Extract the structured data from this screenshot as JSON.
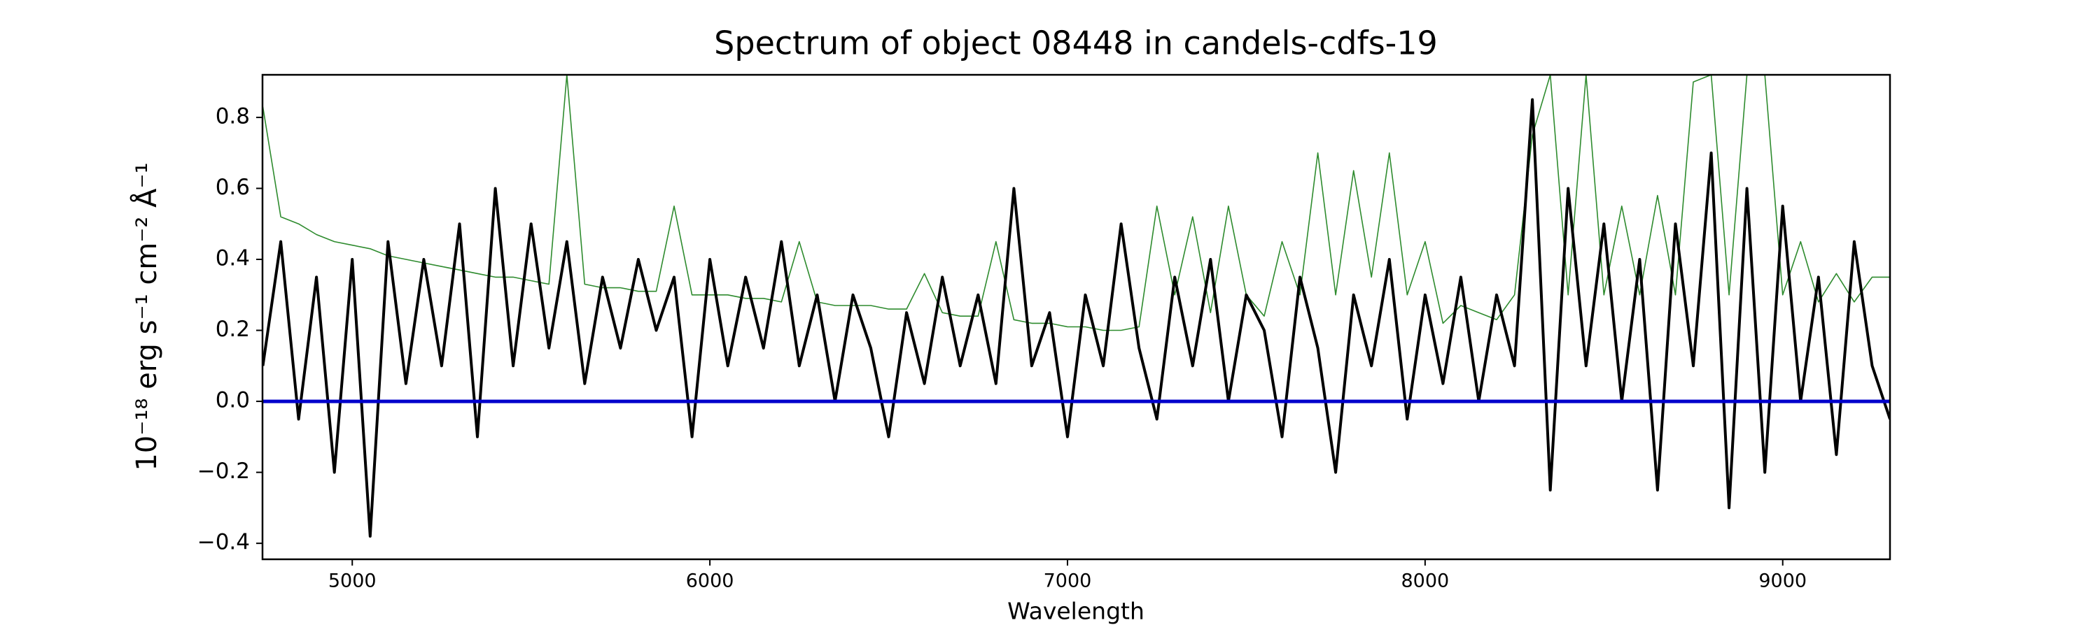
{
  "chart_data": {
    "type": "line",
    "title": "Spectrum of object 08448 in candels-cdfs-19",
    "xlabel": "Wavelength",
    "ylabel": "10⁻¹⁸ erg s⁻¹ cm⁻² Å⁻¹",
    "x": [
      4750,
      4800,
      4850,
      4900,
      4950,
      5000,
      5050,
      5100,
      5150,
      5200,
      5250,
      5300,
      5350,
      5400,
      5450,
      5500,
      5550,
      5600,
      5650,
      5700,
      5750,
      5800,
      5850,
      5900,
      5950,
      6000,
      6050,
      6100,
      6150,
      6200,
      6250,
      6300,
      6350,
      6400,
      6450,
      6500,
      6550,
      6600,
      6650,
      6700,
      6750,
      6800,
      6850,
      6900,
      6950,
      7000,
      7050,
      7100,
      7150,
      7200,
      7250,
      7300,
      7350,
      7400,
      7450,
      7500,
      7550,
      7600,
      7650,
      7700,
      7750,
      7800,
      7850,
      7900,
      7950,
      8000,
      8050,
      8100,
      8150,
      8200,
      8250,
      8300,
      8350,
      8400,
      8450,
      8500,
      8550,
      8600,
      8650,
      8700,
      8750,
      8800,
      8850,
      8900,
      8950,
      9000,
      9050,
      9100,
      9150,
      9200,
      9250,
      9300
    ],
    "series": [
      {
        "color": "#2e8b2e",
        "width": 1.6,
        "values": [
          0.83,
          0.52,
          0.5,
          0.47,
          0.45,
          0.44,
          0.43,
          0.41,
          0.4,
          0.39,
          0.38,
          0.37,
          0.36,
          0.35,
          0.35,
          0.34,
          0.33,
          0.92,
          0.33,
          0.32,
          0.32,
          0.31,
          0.31,
          0.55,
          0.3,
          0.3,
          0.3,
          0.29,
          0.29,
          0.28,
          0.45,
          0.28,
          0.27,
          0.27,
          0.27,
          0.26,
          0.26,
          0.36,
          0.25,
          0.24,
          0.24,
          0.45,
          0.23,
          0.22,
          0.22,
          0.21,
          0.21,
          0.2,
          0.2,
          0.21,
          0.55,
          0.3,
          0.52,
          0.25,
          0.55,
          0.3,
          0.24,
          0.45,
          0.3,
          0.7,
          0.3,
          0.65,
          0.35,
          0.7,
          0.3,
          0.45,
          0.22,
          0.27,
          0.25,
          0.23,
          0.3,
          0.75,
          0.92,
          0.3,
          0.92,
          0.3,
          0.55,
          0.3,
          0.58,
          0.3,
          0.9,
          0.92,
          0.3,
          0.92,
          0.92,
          0.3,
          0.45,
          0.28,
          0.36,
          0.28,
          0.35,
          0.35
        ]
      },
      {
        "color": "#000000",
        "width": 4,
        "values": [
          0.1,
          0.45,
          -0.05,
          0.35,
          -0.2,
          0.4,
          -0.38,
          0.45,
          0.05,
          0.4,
          0.1,
          0.5,
          -0.1,
          0.6,
          0.1,
          0.5,
          0.15,
          0.45,
          0.05,
          0.35,
          0.15,
          0.4,
          0.2,
          0.35,
          -0.1,
          0.4,
          0.1,
          0.35,
          0.15,
          0.45,
          0.1,
          0.3,
          0.0,
          0.3,
          0.15,
          -0.1,
          0.25,
          0.05,
          0.35,
          0.1,
          0.3,
          0.05,
          0.6,
          0.1,
          0.25,
          -0.1,
          0.3,
          0.1,
          0.5,
          0.15,
          -0.05,
          0.35,
          0.1,
          0.4,
          0.0,
          0.3,
          0.2,
          -0.1,
          0.35,
          0.15,
          -0.2,
          0.3,
          0.1,
          0.4,
          -0.05,
          0.3,
          0.05,
          0.35,
          0.0,
          0.3,
          0.1,
          0.85,
          -0.25,
          0.6,
          0.1,
          0.5,
          0.0,
          0.4,
          -0.25,
          0.5,
          0.1,
          0.7,
          -0.3,
          0.6,
          -0.2,
          0.55,
          0.0,
          0.35,
          -0.15,
          0.45,
          0.1,
          -0.05
        ]
      }
    ],
    "hlines": [
      {
        "y": 0,
        "color": "#0000cc"
      }
    ],
    "xlim": [
      4749,
      9300
    ],
    "ylim": [
      -0.445,
      0.92
    ],
    "xticks": [
      5000,
      6000,
      7000,
      8000,
      9000
    ],
    "yticks": [
      {
        "value": -0.4,
        "label": "−0.4"
      },
      {
        "value": -0.2,
        "label": "−0.2"
      },
      {
        "value": 0,
        "label": "0.0"
      },
      0.2,
      0.4,
      0.6,
      0.8
    ],
    "grid": false
  }
}
